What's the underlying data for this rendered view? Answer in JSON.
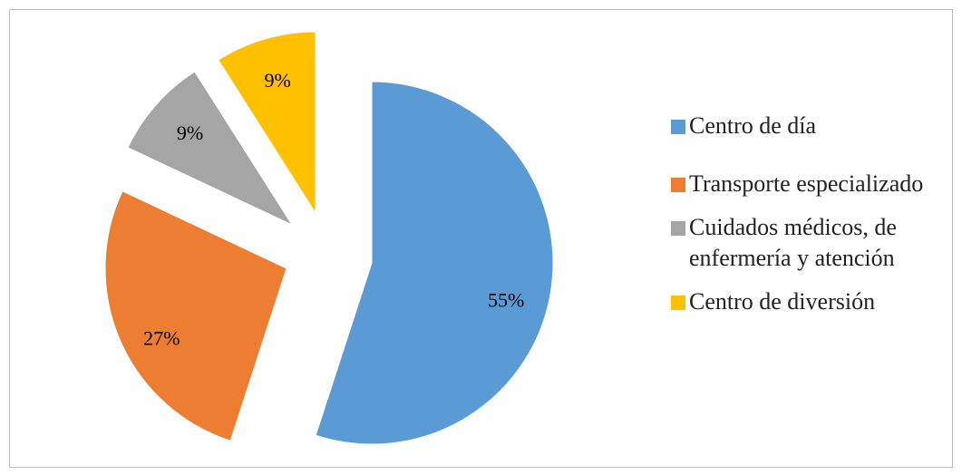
{
  "chart_data": {
    "type": "pie",
    "categories": [
      "Centro de día",
      "Transporte especializado",
      "Cuidados médicos, de enfermería y atención",
      "Centro de diversión"
    ],
    "values": [
      55,
      27,
      9,
      9
    ],
    "value_labels": [
      "55%",
      "27%",
      "9%",
      "9%"
    ],
    "colors": [
      "#5b9bd5",
      "#ed7d31",
      "#a5a5a5",
      "#ffc000"
    ],
    "legend": "right"
  }
}
